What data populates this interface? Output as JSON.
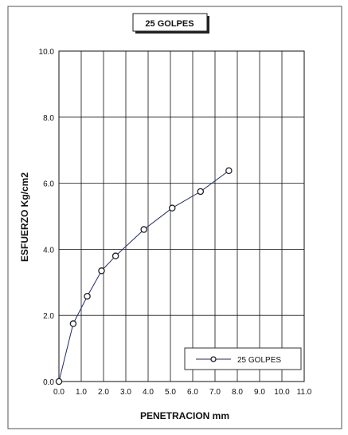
{
  "chart_data": {
    "type": "line",
    "title": "25 GOLPES",
    "xlabel": "PENETRACION mm",
    "ylabel": "ESFUERZO Kg/cm2",
    "xlim": [
      0,
      11
    ],
    "ylim": [
      0,
      10
    ],
    "x_ticks": [
      "0.0",
      "1.0",
      "2.0",
      "3.0",
      "4.0",
      "5.0",
      "6.0",
      "7.0",
      "8.0",
      "9.0",
      "10.0",
      "11.0"
    ],
    "y_ticks": [
      "0.0",
      "2.0",
      "4.0",
      "6.0",
      "8.0",
      "10.0"
    ],
    "grid": true,
    "legend_position": "bottom-right",
    "series": [
      {
        "name": "25 GOLPES",
        "color": "#1f2a6b",
        "x": [
          0.0,
          0.64,
          1.27,
          1.91,
          2.54,
          3.81,
          5.08,
          6.35,
          7.62
        ],
        "y": [
          0.0,
          1.75,
          2.58,
          3.35,
          3.8,
          4.6,
          5.25,
          5.75,
          6.38
        ]
      }
    ]
  }
}
